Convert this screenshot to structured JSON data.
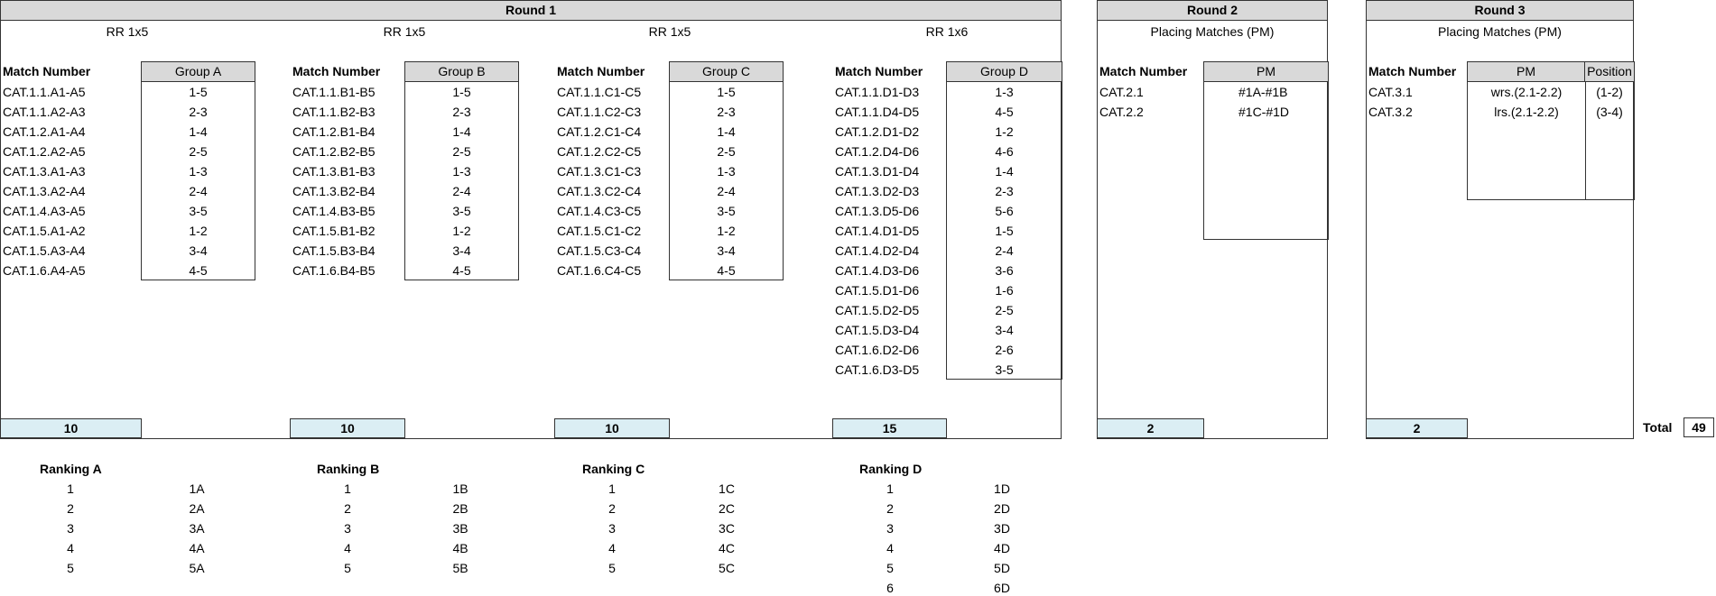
{
  "round1": {
    "title": "Round 1",
    "match_header": "Match Number",
    "groups": [
      {
        "format": "RR 1x5",
        "name": "Group A",
        "matches": [
          "CAT.1.1.A1-A5",
          "CAT.1.1.A2-A3",
          "CAT.1.2.A1-A4",
          "CAT.1.2.A2-A5",
          "CAT.1.3.A1-A3",
          "CAT.1.3.A2-A4",
          "CAT.1.4.A3-A5",
          "CAT.1.5.A1-A2",
          "CAT.1.5.A3-A4",
          "CAT.1.6.A4-A5"
        ],
        "pairs": [
          "1-5",
          "2-3",
          "1-4",
          "2-5",
          "1-3",
          "2-4",
          "3-5",
          "1-2",
          "3-4",
          "4-5"
        ],
        "count": "10"
      },
      {
        "format": "RR 1x5",
        "name": "Group B",
        "matches": [
          "CAT.1.1.B1-B5",
          "CAT.1.1.B2-B3",
          "CAT.1.2.B1-B4",
          "CAT.1.2.B2-B5",
          "CAT.1.3.B1-B3",
          "CAT.1.3.B2-B4",
          "CAT.1.4.B3-B5",
          "CAT.1.5.B1-B2",
          "CAT.1.5.B3-B4",
          "CAT.1.6.B4-B5"
        ],
        "pairs": [
          "1-5",
          "2-3",
          "1-4",
          "2-5",
          "1-3",
          "2-4",
          "3-5",
          "1-2",
          "3-4",
          "4-5"
        ],
        "count": "10"
      },
      {
        "format": "RR 1x5",
        "name": "Group C",
        "matches": [
          "CAT.1.1.C1-C5",
          "CAT.1.1.C2-C3",
          "CAT.1.2.C1-C4",
          "CAT.1.2.C2-C5",
          "CAT.1.3.C1-C3",
          "CAT.1.3.C2-C4",
          "CAT.1.4.C3-C5",
          "CAT.1.5.C1-C2",
          "CAT.1.5.C3-C4",
          "CAT.1.6.C4-C5"
        ],
        "pairs": [
          "1-5",
          "2-3",
          "1-4",
          "2-5",
          "1-3",
          "2-4",
          "3-5",
          "1-2",
          "3-4",
          "4-5"
        ],
        "count": "10"
      },
      {
        "format": "RR 1x6",
        "name": "Group D",
        "matches": [
          "CAT.1.1.D1-D3",
          "CAT.1.1.D4-D5",
          "CAT.1.2.D1-D2",
          "CAT.1.2.D4-D6",
          "CAT.1.3.D1-D4",
          "CAT.1.3.D2-D3",
          "CAT.1.3.D5-D6",
          "CAT.1.4.D1-D5",
          "CAT.1.4.D2-D4",
          "CAT.1.4.D3-D6",
          "CAT.1.5.D1-D6",
          "CAT.1.5.D2-D5",
          "CAT.1.5.D3-D4",
          "CAT.1.6.D2-D6",
          "CAT.1.6.D3-D5"
        ],
        "pairs": [
          "1-3",
          "4-5",
          "1-2",
          "4-6",
          "1-4",
          "2-3",
          "5-6",
          "1-5",
          "2-4",
          "3-6",
          "1-6",
          "2-5",
          "3-4",
          "2-6",
          "3-5"
        ],
        "count": "15"
      }
    ]
  },
  "round2": {
    "title": "Round 2",
    "subtitle": "Placing Matches (PM)",
    "match_header": "Match Number",
    "pm_header": "PM",
    "matches": [
      "CAT.2.1",
      "CAT.2.2"
    ],
    "pm": [
      "#1A-#1B",
      "#1C-#1D"
    ],
    "count": "2"
  },
  "round3": {
    "title": "Round 3",
    "subtitle": "Placing Matches (PM)",
    "match_header": "Match Number",
    "pm_header": "PM",
    "position_header": "Position",
    "matches": [
      "CAT.3.1",
      "CAT.3.2"
    ],
    "pm": [
      "wrs.(2.1-2.2)",
      "lrs.(2.1-2.2)"
    ],
    "positions": [
      "(1-2)",
      "(3-4)"
    ],
    "count": "2"
  },
  "total": {
    "label": "Total",
    "value": "49"
  },
  "rankings": [
    {
      "title": "Ranking A",
      "ranks": [
        "1",
        "2",
        "3",
        "4",
        "5"
      ],
      "codes": [
        "1A",
        "2A",
        "3A",
        "4A",
        "5A"
      ]
    },
    {
      "title": "Ranking B",
      "ranks": [
        "1",
        "2",
        "3",
        "4",
        "5"
      ],
      "codes": [
        "1B",
        "2B",
        "3B",
        "4B",
        "5B"
      ]
    },
    {
      "title": "Ranking C",
      "ranks": [
        "1",
        "2",
        "3",
        "4",
        "5"
      ],
      "codes": [
        "1C",
        "2C",
        "3C",
        "4C",
        "5C"
      ]
    },
    {
      "title": "Ranking D",
      "ranks": [
        "1",
        "2",
        "3",
        "4",
        "5",
        "6"
      ],
      "codes": [
        "1D",
        "2D",
        "3D",
        "4D",
        "5D",
        "6D"
      ]
    }
  ]
}
